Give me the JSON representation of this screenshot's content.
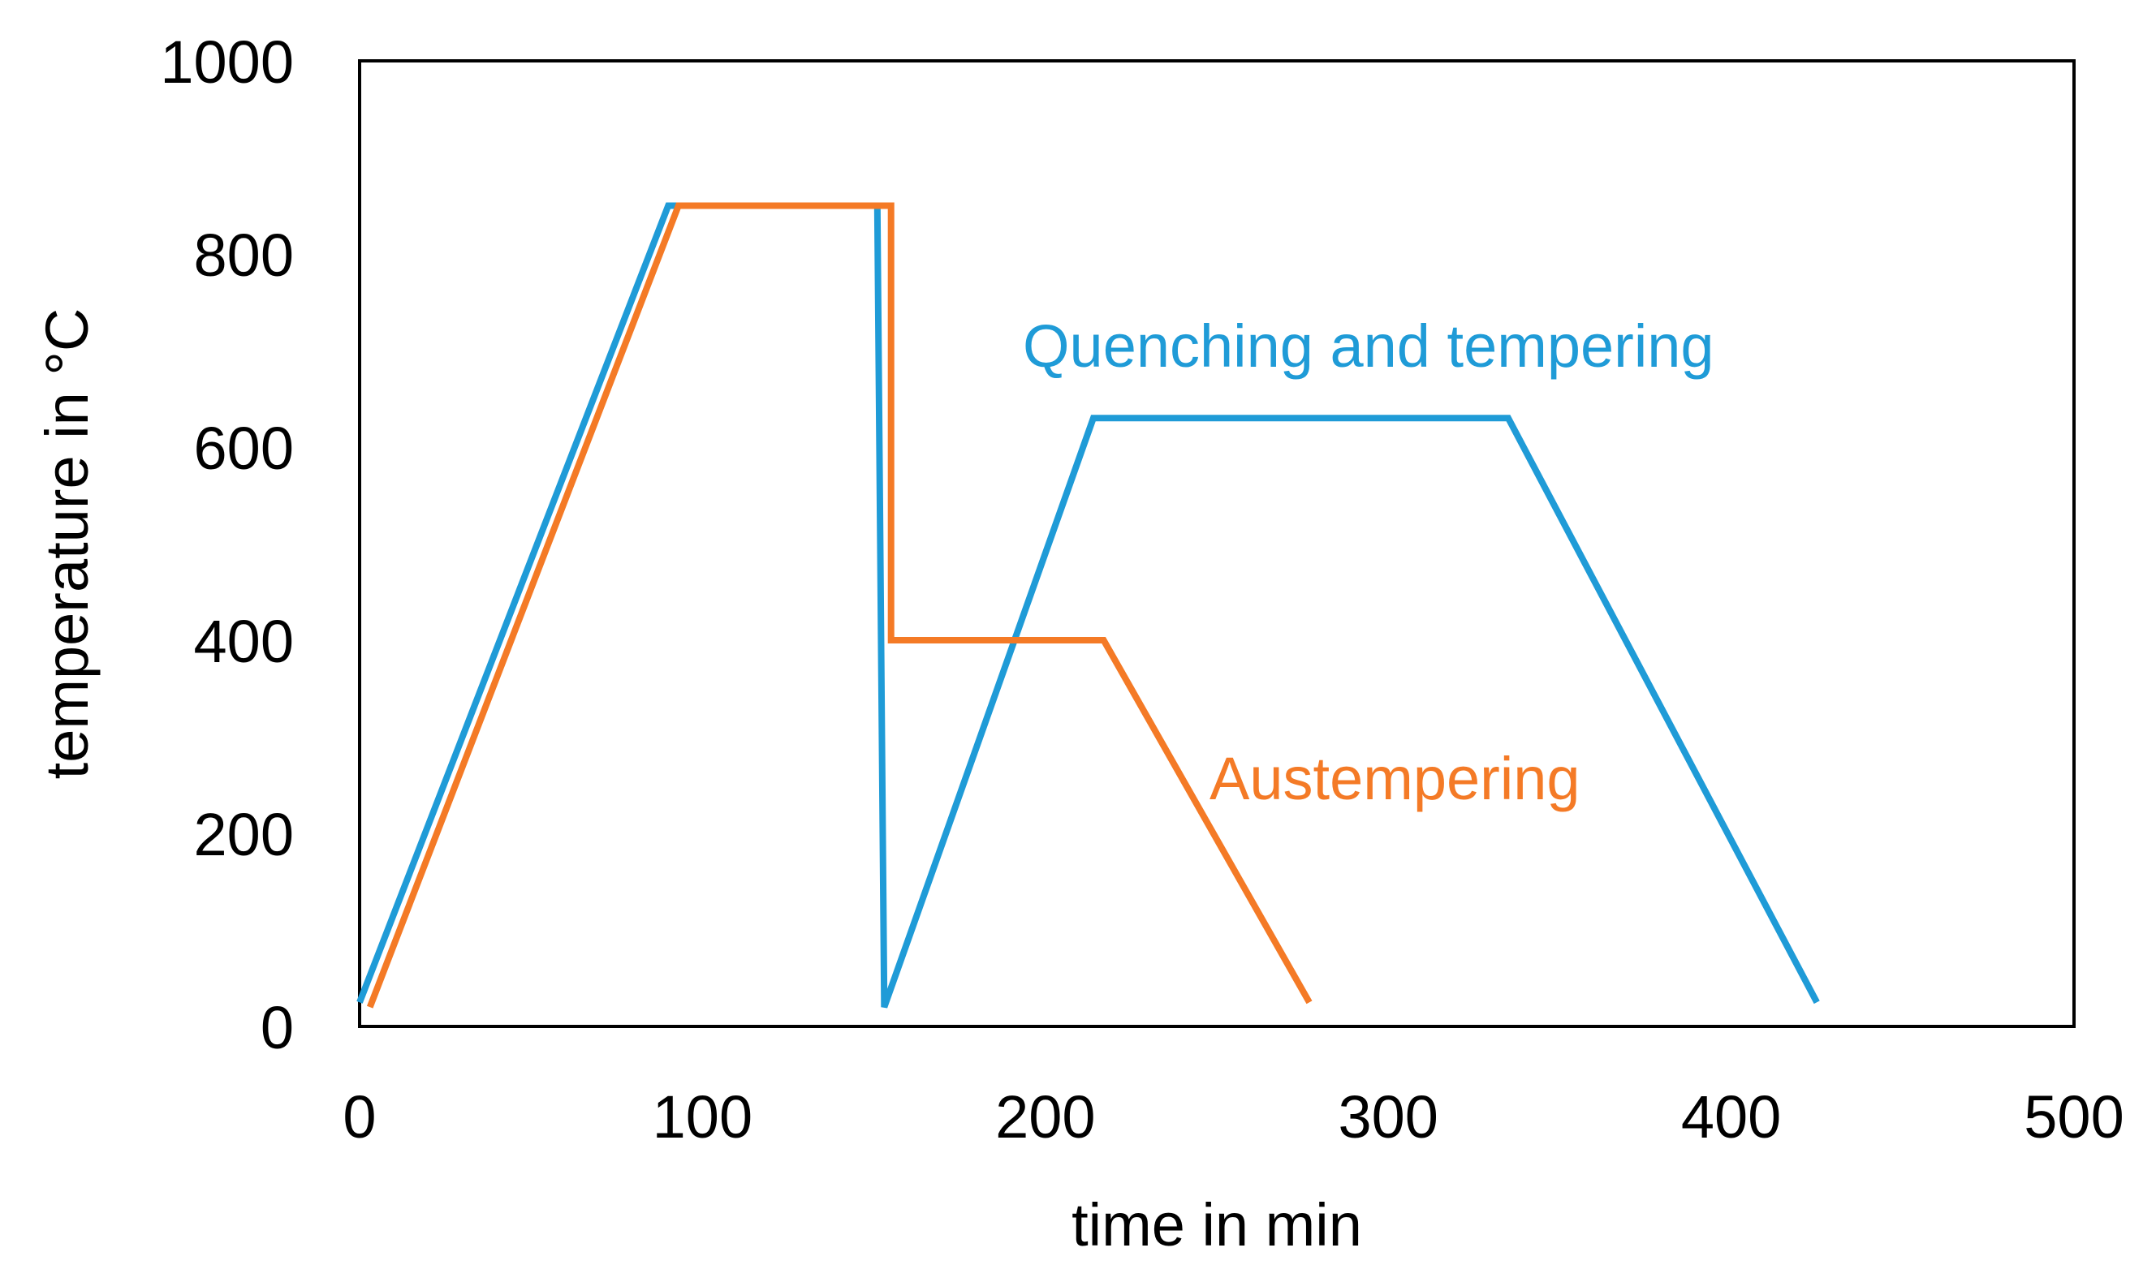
{
  "chart_data": {
    "type": "line",
    "title": "",
    "xlabel": "time in min",
    "ylabel": "temperature in °C",
    "xlim": [
      0,
      500
    ],
    "ylim": [
      0,
      1000
    ],
    "xticks": [
      0,
      100,
      200,
      300,
      400,
      500
    ],
    "yticks": [
      0,
      200,
      400,
      600,
      800,
      1000
    ],
    "xtick_labels": [
      "0",
      "100",
      "200",
      "300",
      "400",
      "500"
    ],
    "ytick_labels": [
      "0",
      "200",
      "400",
      "600",
      "800",
      "1000"
    ],
    "grid": false,
    "legend": "inline labels",
    "series": [
      {
        "name": "Quenching and tempering",
        "color": "#1f9bd7",
        "points": [
          {
            "x": 0,
            "y": 25
          },
          {
            "x": 90,
            "y": 850
          },
          {
            "x": 151,
            "y": 850
          },
          {
            "x": 153,
            "y": 20
          },
          {
            "x": 214,
            "y": 630
          },
          {
            "x": 335,
            "y": 630
          },
          {
            "x": 425,
            "y": 25
          }
        ]
      },
      {
        "name": "Austempering",
        "color": "#f47a26",
        "points": [
          {
            "x": 3,
            "y": 20
          },
          {
            "x": 93,
            "y": 850
          },
          {
            "x": 155,
            "y": 850
          },
          {
            "x": 155,
            "y": 400
          },
          {
            "x": 217,
            "y": 400
          },
          {
            "x": 277,
            "y": 25
          }
        ]
      }
    ]
  }
}
